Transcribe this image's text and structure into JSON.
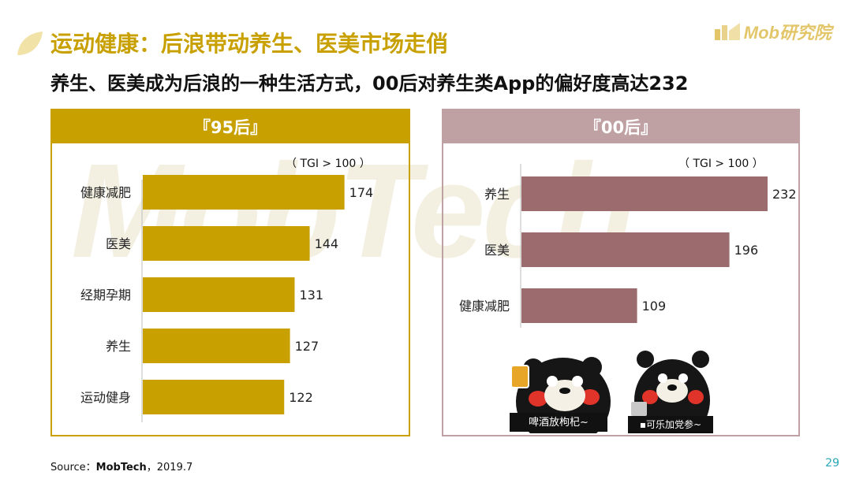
{
  "header": {
    "title": "运动健康：后浪带动养生、医美市场走俏",
    "subtitle": "养生、医美成为后浪的一种生活方式，00后对养生类App的偏好度高达232",
    "brand": "Mob研究院",
    "watermark": "MobTech"
  },
  "colors": {
    "gold": "#c8a000",
    "mauve": "#9c6b6d",
    "mauve_header": "#c0a1a3",
    "page_number": "#2aa6b8"
  },
  "chart_data": [
    {
      "type": "bar",
      "orientation": "horizontal",
      "panel_title": "『95后』",
      "note": "（ TGI > 100 ）",
      "categories": [
        "健康减肥",
        "医美",
        "经期孕期",
        "养生",
        "运动健身"
      ],
      "values": [
        174,
        144,
        131,
        127,
        122
      ],
      "value_labels": [
        "174",
        "144",
        "131",
        "127",
        "122"
      ],
      "color": "#c8a000",
      "xlim": [
        0,
        260
      ],
      "grid": false,
      "legend": "none"
    },
    {
      "type": "bar",
      "orientation": "horizontal",
      "panel_title": "『00后』",
      "note": "（ TGI > 100 ）",
      "categories": [
        "养生",
        "医美",
        "健康减肥"
      ],
      "values": [
        232,
        196,
        109
      ],
      "value_labels": [
        "232",
        "196",
        "109"
      ],
      "color": "#9c6b6d",
      "xlim": [
        0,
        290
      ],
      "grid": false,
      "legend": "none"
    }
  ],
  "stickers": [
    {
      "caption": "啤酒放枸杞~",
      "icon": "kumamon-beer-icon"
    },
    {
      "caption": "▪可乐加党参~",
      "icon": "kumamon-cup-icon"
    }
  ],
  "footer": {
    "source_label": "Source：",
    "source_name": "MobTech",
    "source_date": "，2019.7",
    "page_number": "29"
  }
}
